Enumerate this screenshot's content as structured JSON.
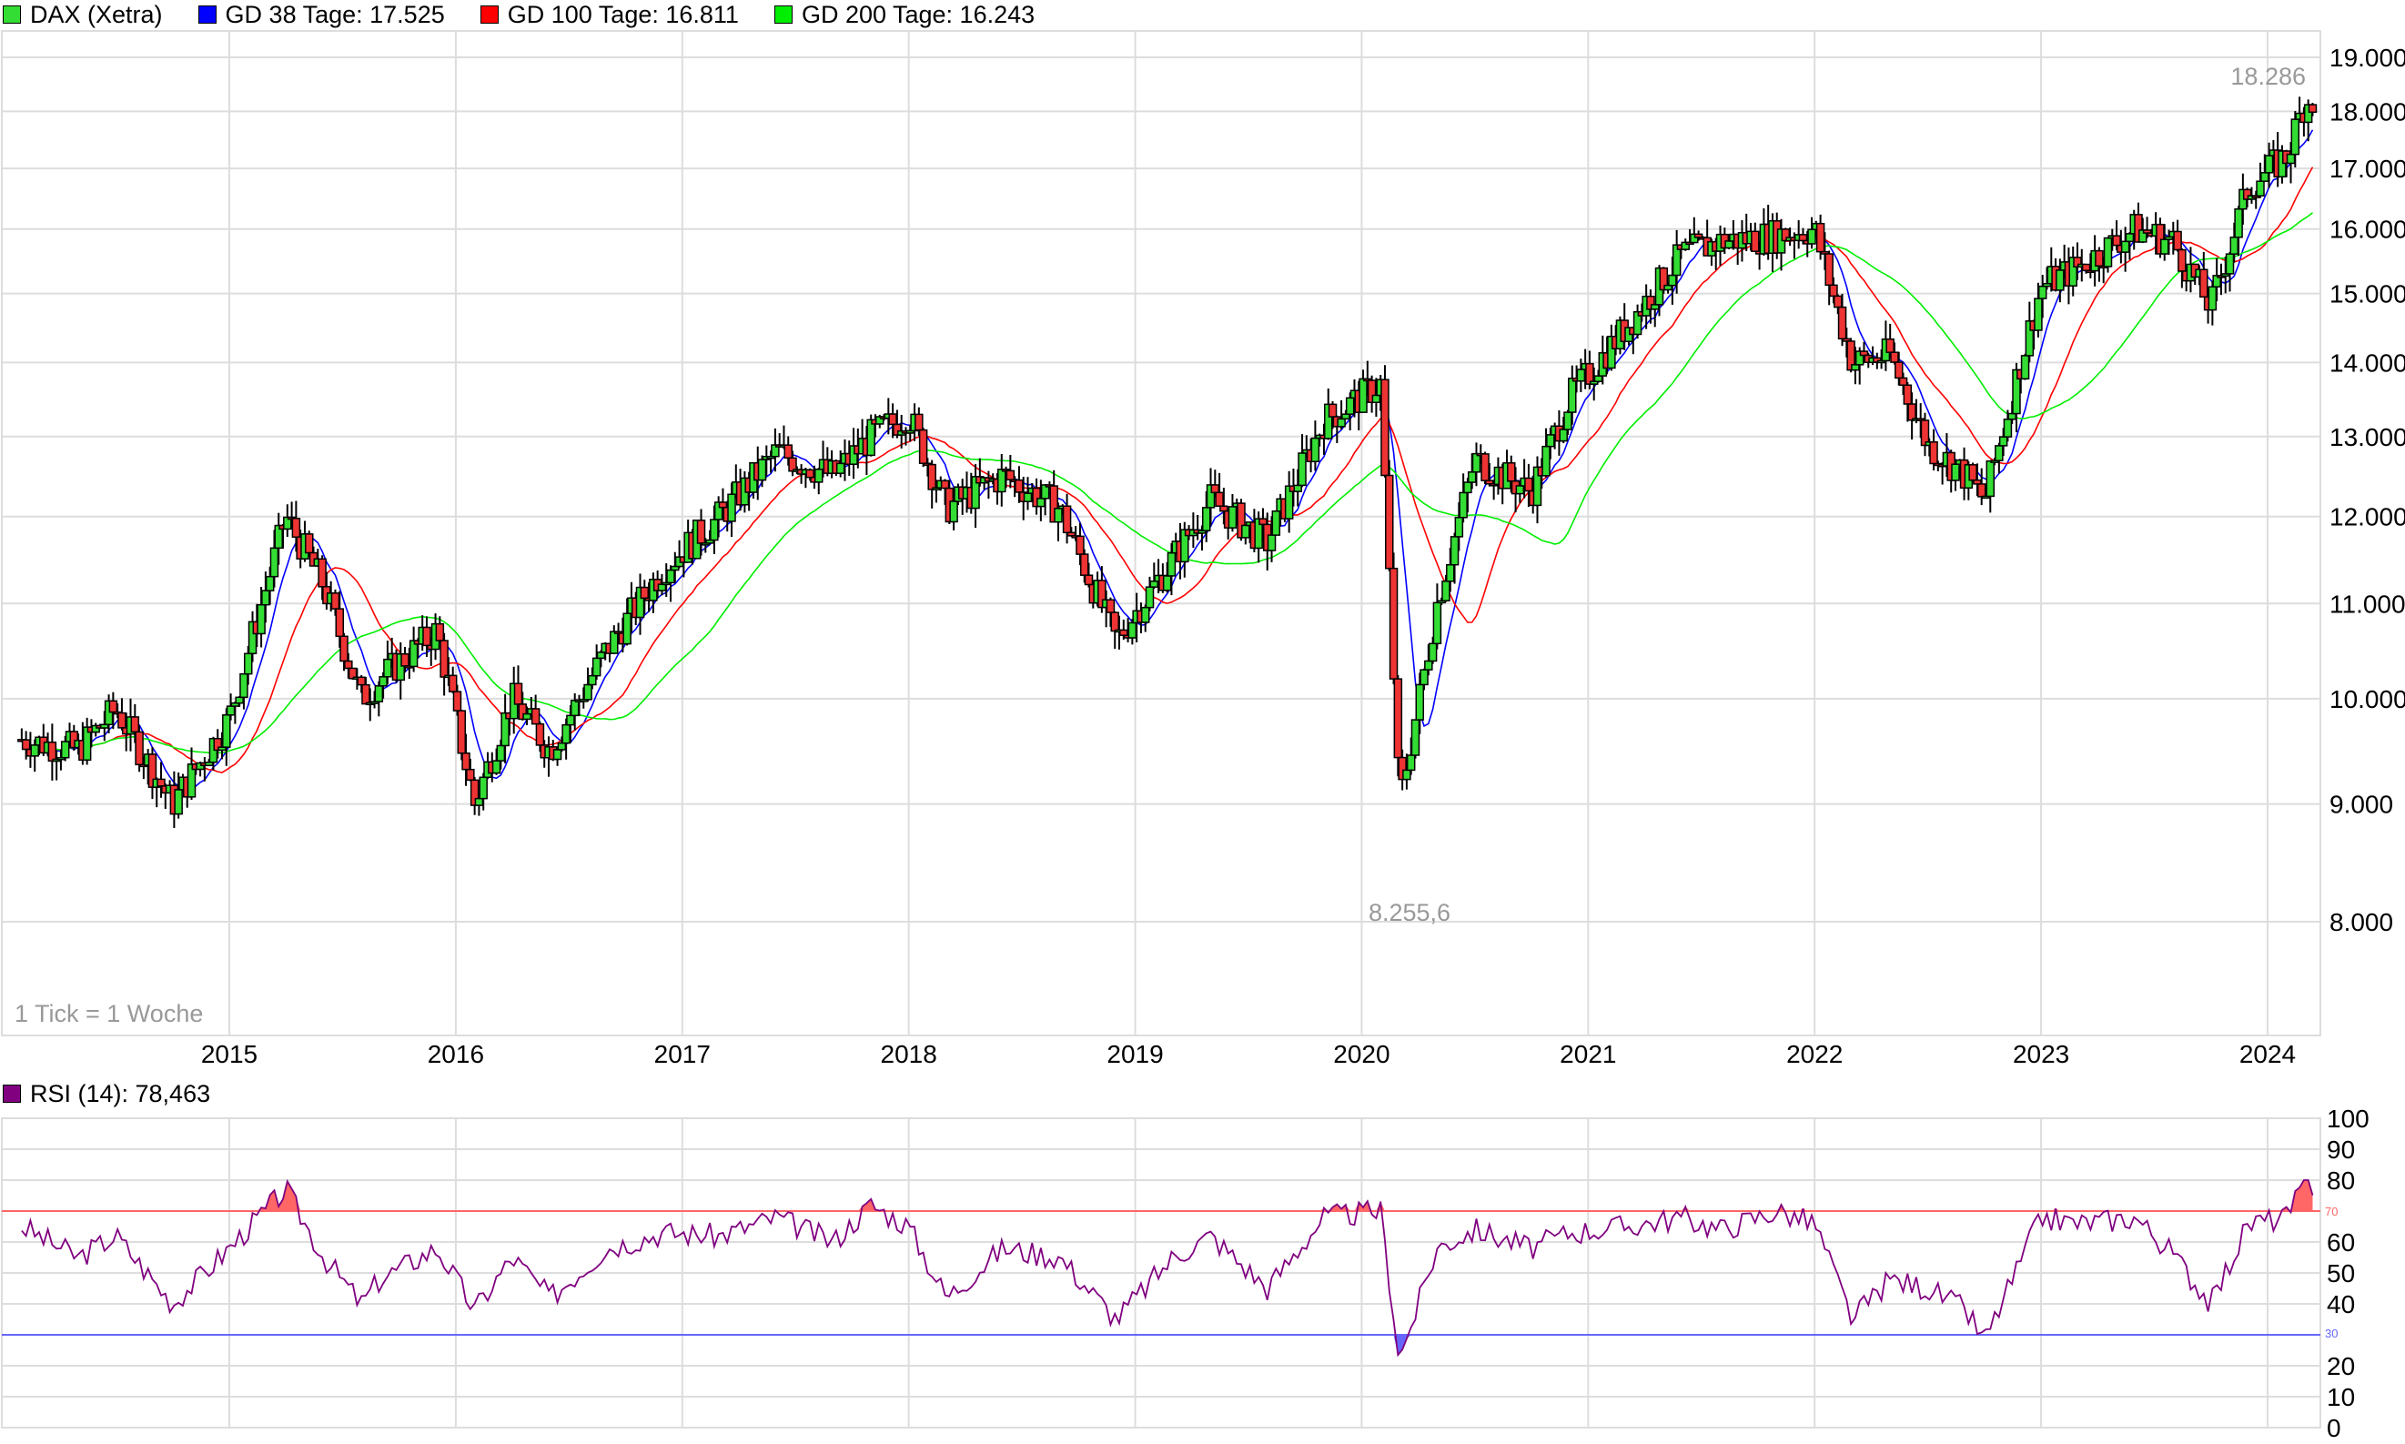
{
  "legend": {
    "main": [
      {
        "label": "DAX (Xetra)",
        "color": "#33dd33"
      },
      {
        "label": "GD 38 Tage: 17.525",
        "color": "#0000ff"
      },
      {
        "label": "GD 100 Tage: 16.811",
        "color": "#ff0000"
      },
      {
        "label": "GD 200 Tage: 16.243",
        "color": "#00ee00"
      }
    ],
    "rsi": {
      "label": "RSI (14): 78,463",
      "color": "#800080"
    }
  },
  "annotations": {
    "high": "18.286",
    "low": "8.255,6",
    "tick_note": "1 Tick = 1 Woche",
    "rsi_upper": "70",
    "rsi_lower": "30"
  },
  "colors": {
    "up": "#33dd33",
    "down": "#ee3333",
    "ma38": "#0000ff",
    "ma100": "#ff0000",
    "ma200": "#00ee00",
    "rsi": "#800080",
    "grid": "#dddddd"
  },
  "chart_data": [
    {
      "type": "candlestick",
      "title": "DAX (Xetra) weekly",
      "xlabel": "",
      "ylabel": "",
      "yscale": "log",
      "ylim": [
        7200,
        19400
      ],
      "y_ticks": [
        "19.000",
        "18.000",
        "17.000",
        "16.000",
        "15.000",
        "14.000",
        "13.000",
        "12.000",
        "11.000",
        "10.000",
        "9.000",
        "8.000"
      ],
      "x_ticks": [
        "2015",
        "2016",
        "2017",
        "2018",
        "2019",
        "2020",
        "2021",
        "2022",
        "2023",
        "2024"
      ],
      "grid": true,
      "legend_position": "top",
      "x": [
        "2014-02",
        "2014-05",
        "2014-07",
        "2014-10",
        "2015-01",
        "2015-04",
        "2015-06",
        "2015-08",
        "2015-09",
        "2015-12",
        "2016-02",
        "2016-04",
        "2016-06",
        "2016-09",
        "2016-12",
        "2017-03",
        "2017-06",
        "2017-09",
        "2017-11",
        "2018-01",
        "2018-03",
        "2018-06",
        "2018-09",
        "2018-12",
        "2019-03",
        "2019-05",
        "2019-08",
        "2019-11",
        "2020-02",
        "2020-03",
        "2020-05",
        "2020-07",
        "2020-10",
        "2020-12",
        "2021-03",
        "2021-06",
        "2021-08",
        "2021-11",
        "2022-01",
        "2022-03",
        "2022-05",
        "2022-07",
        "2022-09",
        "2022-10",
        "2023-01",
        "2023-03",
        "2023-06",
        "2023-08",
        "2023-10",
        "2023-12",
        "2024-02",
        "2024-03"
      ],
      "close": [
        9600,
        9500,
        9900,
        9000,
        9800,
        12000,
        11200,
        10000,
        10200,
        10700,
        9000,
        10000,
        9500,
        10500,
        11400,
        12000,
        12800,
        12500,
        13000,
        13300,
        12100,
        12500,
        12100,
        10600,
        11500,
        12200,
        11700,
        13200,
        13700,
        9000,
        11000,
        12700,
        12300,
        13500,
        14500,
        15600,
        15800,
        15900,
        16000,
        14000,
        14100,
        12900,
        12500,
        12200,
        15100,
        15400,
        16000,
        15800,
        14800,
        16700,
        17200,
        18200
      ],
      "series": [
        {
          "name": "GD 38 Tage",
          "last": 17525
        },
        {
          "name": "GD 100 Tage",
          "last": 16811
        },
        {
          "name": "GD 200 Tage",
          "last": 16243
        }
      ],
      "high_label": 18286,
      "low_label": 8255.6
    },
    {
      "type": "line",
      "title": "RSI (14)",
      "ylim": [
        0,
        100
      ],
      "y_ticks": [
        "100",
        "90",
        "80",
        "70",
        "60",
        "50",
        "40",
        "30",
        "20",
        "10",
        "0"
      ],
      "reference_lines": [
        70,
        30
      ],
      "x": [
        "2014-02",
        "2014-05",
        "2014-07",
        "2014-10",
        "2015-01",
        "2015-04",
        "2015-06",
        "2015-08",
        "2015-09",
        "2015-12",
        "2016-02",
        "2016-04",
        "2016-06",
        "2016-09",
        "2016-12",
        "2017-03",
        "2017-06",
        "2017-09",
        "2017-11",
        "2018-01",
        "2018-03",
        "2018-06",
        "2018-09",
        "2018-12",
        "2019-03",
        "2019-05",
        "2019-08",
        "2019-11",
        "2020-02",
        "2020-03",
        "2020-05",
        "2020-07",
        "2020-10",
        "2020-12",
        "2021-03",
        "2021-06",
        "2021-08",
        "2021-11",
        "2022-01",
        "2022-03",
        "2022-05",
        "2022-07",
        "2022-09",
        "2022-10",
        "2023-01",
        "2023-03",
        "2023-06",
        "2023-08",
        "2023-10",
        "2023-12",
        "2024-02",
        "2024-03"
      ],
      "values": [
        65,
        55,
        62,
        40,
        58,
        77,
        55,
        40,
        48,
        58,
        38,
        55,
        42,
        58,
        63,
        62,
        68,
        60,
        72,
        65,
        42,
        58,
        55,
        35,
        55,
        62,
        45,
        68,
        70,
        22,
        58,
        64,
        58,
        63,
        65,
        68,
        64,
        70,
        66,
        35,
        48,
        45,
        38,
        28,
        68,
        66,
        68,
        56,
        40,
        66,
        68,
        78.5
      ],
      "last": 78.463
    }
  ]
}
